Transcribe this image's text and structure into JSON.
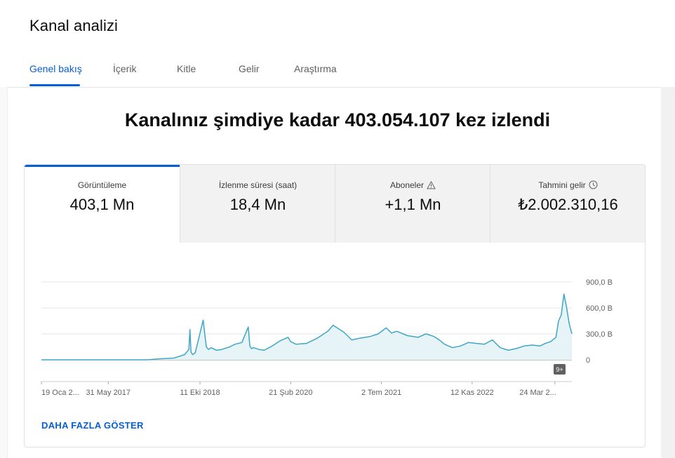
{
  "header": {
    "title": "Kanal analizi"
  },
  "tabs": [
    {
      "label": "Genel bakış",
      "active": true
    },
    {
      "label": "İçerik"
    },
    {
      "label": "Kitle"
    },
    {
      "label": "Gelir"
    },
    {
      "label": "Araştırma"
    }
  ],
  "headline": "Kanalınız şimdiye kadar 403.054.107 kez izlendi",
  "metrics": [
    {
      "label": "Görüntüleme",
      "value": "403,1 Mn"
    },
    {
      "label": "İzlenme süresi (saat)",
      "value": "18,4 Mn"
    },
    {
      "label": "Aboneler",
      "value": "+1,1 Mn",
      "icon": "warning-icon"
    },
    {
      "label": "Tahmini gelir",
      "value": "₺2.002.310,16",
      "icon": "clock-icon"
    }
  ],
  "accent_color": "#065fd4",
  "chart_data": {
    "type": "area",
    "color": "#3ea6c6",
    "y_ticks": [
      "900,0 B",
      "600,0 B",
      "300,0 B",
      "0"
    ],
    "y_tick_values": [
      900000,
      600000,
      300000,
      0
    ],
    "ylim": [
      0,
      900000
    ],
    "x_tick_labels": [
      "19 Oca 2...",
      "31 May 2017",
      "11 Eki 2018",
      "21 Şub 2020",
      "2 Tem 2021",
      "12 Kas 2022",
      "24 Mar 2..."
    ],
    "x_tick_positions": [
      0,
      0.126,
      0.299,
      0.47,
      0.641,
      0.812,
      0.968
    ],
    "annotation_badge": "9+",
    "series": [
      {
        "x": [
          0,
          0.1,
          0.2,
          0.22,
          0.25,
          0.27,
          0.278,
          0.28,
          0.282,
          0.285,
          0.29,
          0.305,
          0.308,
          0.311,
          0.315,
          0.32,
          0.33,
          0.34,
          0.355,
          0.365,
          0.378,
          0.39,
          0.393,
          0.396,
          0.4,
          0.41,
          0.42,
          0.435,
          0.45,
          0.465,
          0.47,
          0.48,
          0.5,
          0.52,
          0.54,
          0.55,
          0.57,
          0.585,
          0.6,
          0.62,
          0.635,
          0.65,
          0.66,
          0.67,
          0.69,
          0.71,
          0.725,
          0.74,
          0.75,
          0.76,
          0.775,
          0.79,
          0.805,
          0.82,
          0.835,
          0.85,
          0.865,
          0.88,
          0.895,
          0.91,
          0.925,
          0.94,
          0.95,
          0.96,
          0.97,
          0.975,
          0.98,
          0.985,
          0.99,
          0.995,
          1.0
        ],
        "y": [
          0,
          0,
          0,
          10000,
          20000,
          60000,
          120000,
          350000,
          90000,
          60000,
          80000,
          460000,
          300000,
          150000,
          120000,
          140000,
          110000,
          120000,
          150000,
          180000,
          200000,
          380000,
          160000,
          130000,
          140000,
          120000,
          110000,
          160000,
          220000,
          260000,
          210000,
          180000,
          190000,
          250000,
          330000,
          400000,
          320000,
          230000,
          250000,
          270000,
          300000,
          370000,
          310000,
          330000,
          280000,
          260000,
          300000,
          270000,
          230000,
          180000,
          140000,
          160000,
          200000,
          190000,
          180000,
          230000,
          140000,
          110000,
          130000,
          160000,
          170000,
          160000,
          190000,
          210000,
          260000,
          450000,
          520000,
          760000,
          610000,
          420000,
          300000
        ]
      }
    ]
  },
  "footer": {
    "more_label": "DAHA FAZLA GÖSTER"
  }
}
